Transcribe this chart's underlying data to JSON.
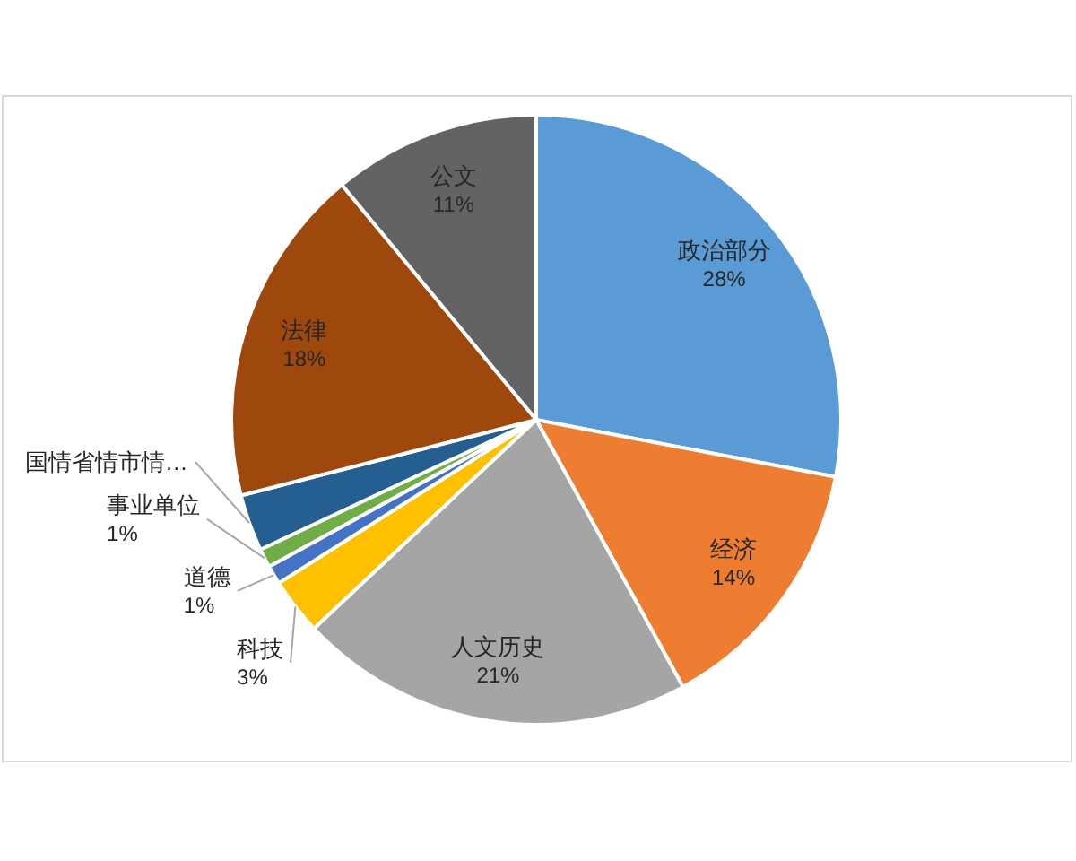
{
  "chart_data": {
    "type": "pie",
    "categories": [
      "政治部分",
      "经济",
      "人文历史",
      "科技",
      "道德",
      "事业单位",
      "国情省情市情…",
      "法律",
      "公文"
    ],
    "values": [
      28,
      14,
      21,
      3,
      1,
      1,
      3,
      18,
      11
    ],
    "colors": [
      "#5b9bd5",
      "#ed7d31",
      "#a5a5a5",
      "#ffc000",
      "#4472c4",
      "#70ad47",
      "#255e91",
      "#9e480e",
      "#636363"
    ],
    "value_labels": [
      "28%",
      "14%",
      "21%",
      "3%",
      "1%",
      "1%",
      null,
      "18%",
      "11%"
    ]
  }
}
